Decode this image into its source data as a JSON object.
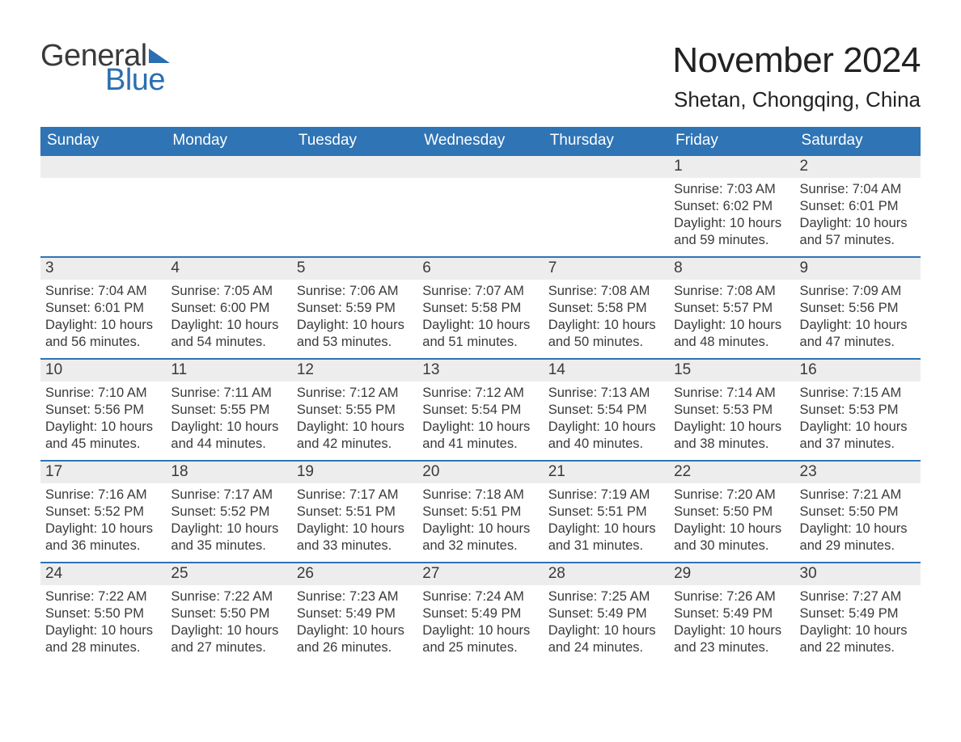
{
  "logo": {
    "word1": "General",
    "word2": "Blue",
    "accent_color": "#2b6fb0"
  },
  "header": {
    "month_title": "November 2024",
    "location": "Shetan, Chongqing, China"
  },
  "calendar": {
    "header_bg": "#2f74b5",
    "header_fg": "#ffffff",
    "row_accent": "#2f74b5",
    "daynum_bg": "#ededed",
    "text_color": "#3a3a3a",
    "day_headers": [
      "Sunday",
      "Monday",
      "Tuesday",
      "Wednesday",
      "Thursday",
      "Friday",
      "Saturday"
    ],
    "weeks": [
      [
        null,
        null,
        null,
        null,
        null,
        {
          "n": "1",
          "sunrise": "7:03 AM",
          "sunset": "6:02 PM",
          "daylight": "10 hours and 59 minutes."
        },
        {
          "n": "2",
          "sunrise": "7:04 AM",
          "sunset": "6:01 PM",
          "daylight": "10 hours and 57 minutes."
        }
      ],
      [
        {
          "n": "3",
          "sunrise": "7:04 AM",
          "sunset": "6:01 PM",
          "daylight": "10 hours and 56 minutes."
        },
        {
          "n": "4",
          "sunrise": "7:05 AM",
          "sunset": "6:00 PM",
          "daylight": "10 hours and 54 minutes."
        },
        {
          "n": "5",
          "sunrise": "7:06 AM",
          "sunset": "5:59 PM",
          "daylight": "10 hours and 53 minutes."
        },
        {
          "n": "6",
          "sunrise": "7:07 AM",
          "sunset": "5:58 PM",
          "daylight": "10 hours and 51 minutes."
        },
        {
          "n": "7",
          "sunrise": "7:08 AM",
          "sunset": "5:58 PM",
          "daylight": "10 hours and 50 minutes."
        },
        {
          "n": "8",
          "sunrise": "7:08 AM",
          "sunset": "5:57 PM",
          "daylight": "10 hours and 48 minutes."
        },
        {
          "n": "9",
          "sunrise": "7:09 AM",
          "sunset": "5:56 PM",
          "daylight": "10 hours and 47 minutes."
        }
      ],
      [
        {
          "n": "10",
          "sunrise": "7:10 AM",
          "sunset": "5:56 PM",
          "daylight": "10 hours and 45 minutes."
        },
        {
          "n": "11",
          "sunrise": "7:11 AM",
          "sunset": "5:55 PM",
          "daylight": "10 hours and 44 minutes."
        },
        {
          "n": "12",
          "sunrise": "7:12 AM",
          "sunset": "5:55 PM",
          "daylight": "10 hours and 42 minutes."
        },
        {
          "n": "13",
          "sunrise": "7:12 AM",
          "sunset": "5:54 PM",
          "daylight": "10 hours and 41 minutes."
        },
        {
          "n": "14",
          "sunrise": "7:13 AM",
          "sunset": "5:54 PM",
          "daylight": "10 hours and 40 minutes."
        },
        {
          "n": "15",
          "sunrise": "7:14 AM",
          "sunset": "5:53 PM",
          "daylight": "10 hours and 38 minutes."
        },
        {
          "n": "16",
          "sunrise": "7:15 AM",
          "sunset": "5:53 PM",
          "daylight": "10 hours and 37 minutes."
        }
      ],
      [
        {
          "n": "17",
          "sunrise": "7:16 AM",
          "sunset": "5:52 PM",
          "daylight": "10 hours and 36 minutes."
        },
        {
          "n": "18",
          "sunrise": "7:17 AM",
          "sunset": "5:52 PM",
          "daylight": "10 hours and 35 minutes."
        },
        {
          "n": "19",
          "sunrise": "7:17 AM",
          "sunset": "5:51 PM",
          "daylight": "10 hours and 33 minutes."
        },
        {
          "n": "20",
          "sunrise": "7:18 AM",
          "sunset": "5:51 PM",
          "daylight": "10 hours and 32 minutes."
        },
        {
          "n": "21",
          "sunrise": "7:19 AM",
          "sunset": "5:51 PM",
          "daylight": "10 hours and 31 minutes."
        },
        {
          "n": "22",
          "sunrise": "7:20 AM",
          "sunset": "5:50 PM",
          "daylight": "10 hours and 30 minutes."
        },
        {
          "n": "23",
          "sunrise": "7:21 AM",
          "sunset": "5:50 PM",
          "daylight": "10 hours and 29 minutes."
        }
      ],
      [
        {
          "n": "24",
          "sunrise": "7:22 AM",
          "sunset": "5:50 PM",
          "daylight": "10 hours and 28 minutes."
        },
        {
          "n": "25",
          "sunrise": "7:22 AM",
          "sunset": "5:50 PM",
          "daylight": "10 hours and 27 minutes."
        },
        {
          "n": "26",
          "sunrise": "7:23 AM",
          "sunset": "5:49 PM",
          "daylight": "10 hours and 26 minutes."
        },
        {
          "n": "27",
          "sunrise": "7:24 AM",
          "sunset": "5:49 PM",
          "daylight": "10 hours and 25 minutes."
        },
        {
          "n": "28",
          "sunrise": "7:25 AM",
          "sunset": "5:49 PM",
          "daylight": "10 hours and 24 minutes."
        },
        {
          "n": "29",
          "sunrise": "7:26 AM",
          "sunset": "5:49 PM",
          "daylight": "10 hours and 23 minutes."
        },
        {
          "n": "30",
          "sunrise": "7:27 AM",
          "sunset": "5:49 PM",
          "daylight": "10 hours and 22 minutes."
        }
      ]
    ],
    "labels": {
      "sunrise": "Sunrise: ",
      "sunset": "Sunset: ",
      "daylight": "Daylight: "
    }
  }
}
